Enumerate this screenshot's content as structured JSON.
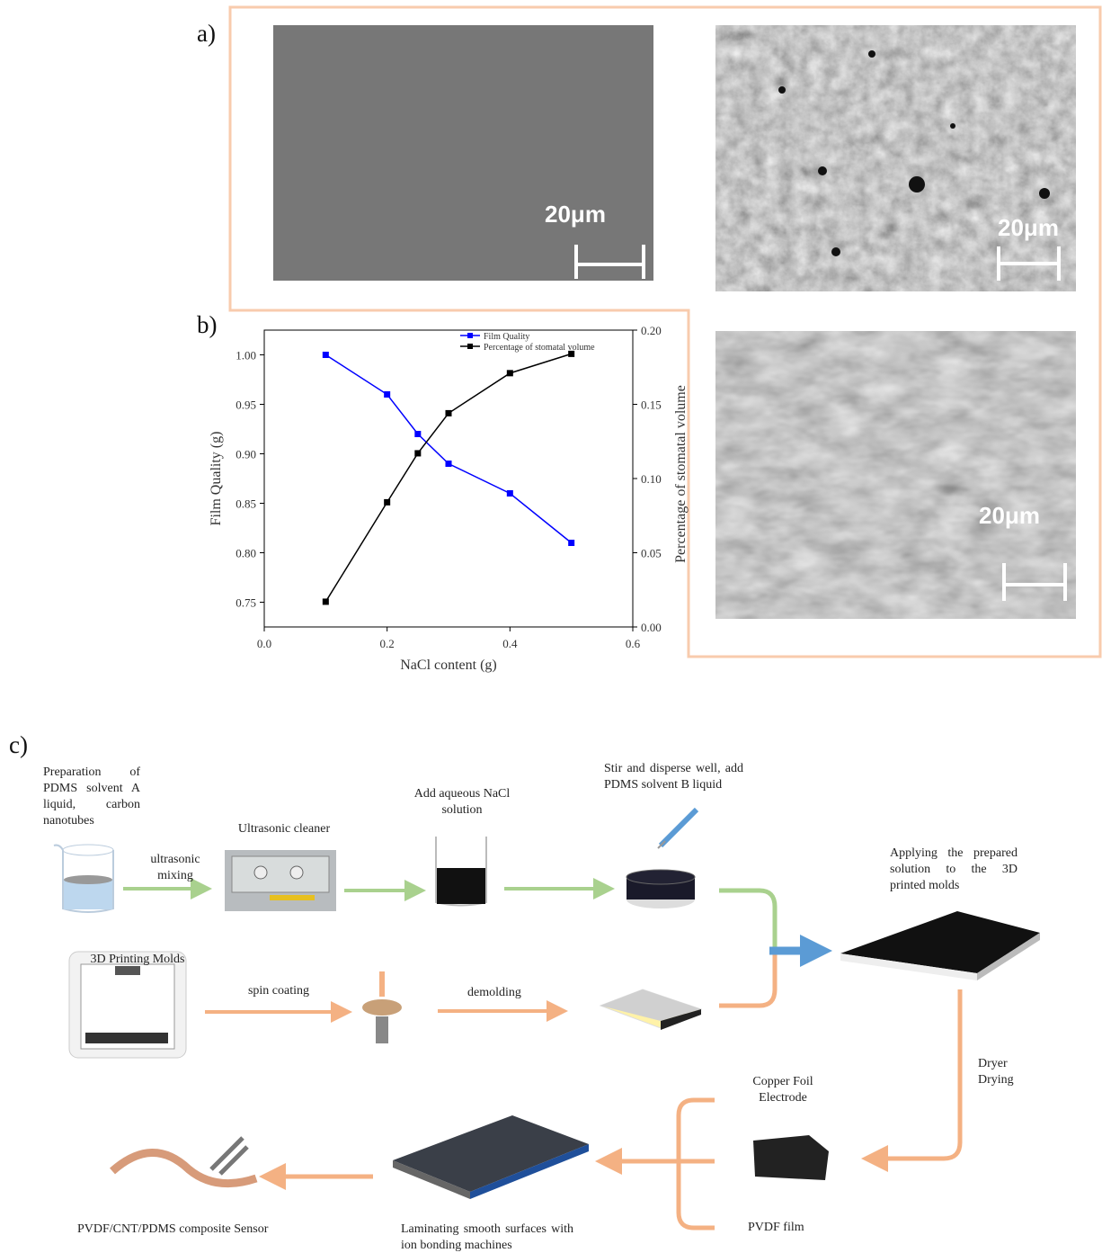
{
  "panels": {
    "a": "a)",
    "b": "b)",
    "c": "c)"
  },
  "sem_images": {
    "scale_labels": [
      "20μm",
      "20μm",
      "20μm"
    ]
  },
  "chart_data": {
    "type": "line",
    "x_label": "NaCl content (g)",
    "y_label": "Film Quality (g)",
    "y2_label": "Percentage of stomatal volume",
    "x": [
      0.1,
      0.2,
      0.25,
      0.3,
      0.4,
      0.5
    ],
    "series": [
      {
        "name": "Film Quality",
        "color": "#0000ff",
        "values": [
          1.0,
          0.96,
          0.92,
          0.89,
          0.86,
          0.81
        ]
      },
      {
        "name": "Percentage of stomatal volume",
        "color": "#000000",
        "axis": "y2",
        "values": [
          0.017,
          0.084,
          0.117,
          0.144,
          0.171,
          0.184
        ]
      }
    ],
    "xlim": [
      0,
      0.6
    ],
    "xticks": [
      {
        "value": 0,
        "label": "0.0"
      },
      0.2,
      0.4,
      0.6
    ],
    "ylim": [
      0.725,
      1.025
    ],
    "yticks": [
      0.75,
      {
        "value": 0.8,
        "label": "0.80"
      },
      0.85,
      {
        "value": 0.9,
        "label": "0.90"
      },
      0.95,
      {
        "value": 1,
        "label": "1.00"
      }
    ],
    "y2lim": [
      0,
      0.2
    ],
    "y2ticks": [
      {
        "value": 0,
        "label": "0.00"
      },
      0.05,
      {
        "value": 0.1,
        "label": "0.10"
      },
      0.15,
      {
        "value": 0.2,
        "label": "0.20"
      }
    ],
    "legend": "top"
  },
  "diagram": {
    "prep": "Preparation of PDMS solvent A liquid, carbon nanotubes",
    "mixing": "ultrasonic mixing",
    "cleaner": "Ultrasonic cleaner",
    "nacl": "Add aqueous NaCl solution",
    "stir": "Stir and disperse well, add PDMS solvent B liquid",
    "apply": "Applying the prepared solution to the 3D printed molds",
    "molds": "3D Printing Molds",
    "spin": "spin coating",
    "demold": "demolding",
    "dryer": "Dryer Drying",
    "copper": "Copper Foil Electrode",
    "pvdf": "PVDF film",
    "laminate": "Laminating smooth surfaces with ion bonding machines",
    "sensor": "PVDF/CNT/PDMS composite Sensor"
  }
}
